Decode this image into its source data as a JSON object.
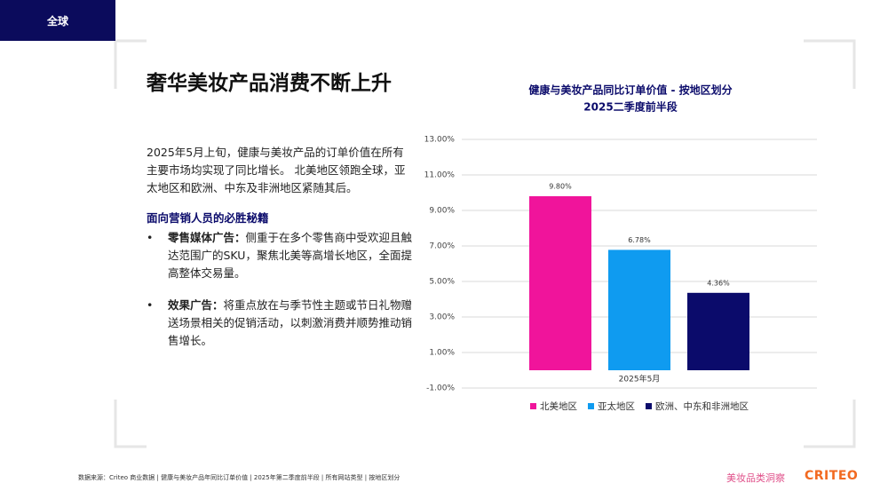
{
  "header": {
    "tag": "全球",
    "title": "奢华美妆产品消费不断上升"
  },
  "body": {
    "paragraph": "2025年5月上旬，健康与美妆产品的订单价值在所有主要市场均实现了同比增长。 北美地区领跑全球，亚太地区和欧洲、中东及非洲地区紧随其后。",
    "subheading": "面向营销人员的必胜秘籍",
    "bullets": [
      {
        "label": "零售媒体广告：",
        "text": "侧重于在多个零售商中受欢迎且触达范围广的SKU，聚焦北美等高增长地区，全面提高整体交易量。"
      },
      {
        "label": "效果广告：",
        "text": "将重点放在与季节性主题或节日礼物赠送场景相关的促销活动，以刺激消费并顺势推动销售增长。"
      }
    ]
  },
  "chart_data": {
    "type": "bar",
    "title": "健康与美妆产品同比订单价值 - 按地区划分",
    "subtitle": "2025二季度前半段",
    "categories": [
      "2025年5月"
    ],
    "series": [
      {
        "name": "北美地区",
        "color": "#f0149b",
        "values": [
          9.8
        ],
        "value_labels": [
          "9.80%"
        ]
      },
      {
        "name": "亚太地区",
        "color": "#0f9bf0",
        "values": [
          6.78
        ],
        "value_labels": [
          "6.78%"
        ]
      },
      {
        "name": "欧洲、中东和非洲地区",
        "color": "#0b0b6b",
        "values": [
          4.36
        ],
        "value_labels": [
          "4.36%"
        ]
      }
    ],
    "ylim": [
      -1,
      13
    ],
    "yticks": [
      {
        "value": -1,
        "label": "-1.00%"
      },
      {
        "value": 1,
        "label": "1.00%"
      },
      {
        "value": 3,
        "label": "3.00%"
      },
      {
        "value": 5,
        "label": "5.00%"
      },
      {
        "value": 7,
        "label": "7.00%"
      },
      {
        "value": 9,
        "label": "9.00%"
      },
      {
        "value": 11,
        "label": "11.00%"
      },
      {
        "value": 13,
        "label": "13.00%"
      }
    ],
    "grid": true,
    "legend": "bottom"
  },
  "footer": {
    "source": "数据来源：Criteo 商业数据 | 健康与美妆产品年同比订单价值 | 2025年第二季度前半段 | 所有网站类型 | 按地区划分",
    "series_name": "美妆品类洞察",
    "logo": "CRITEO"
  }
}
